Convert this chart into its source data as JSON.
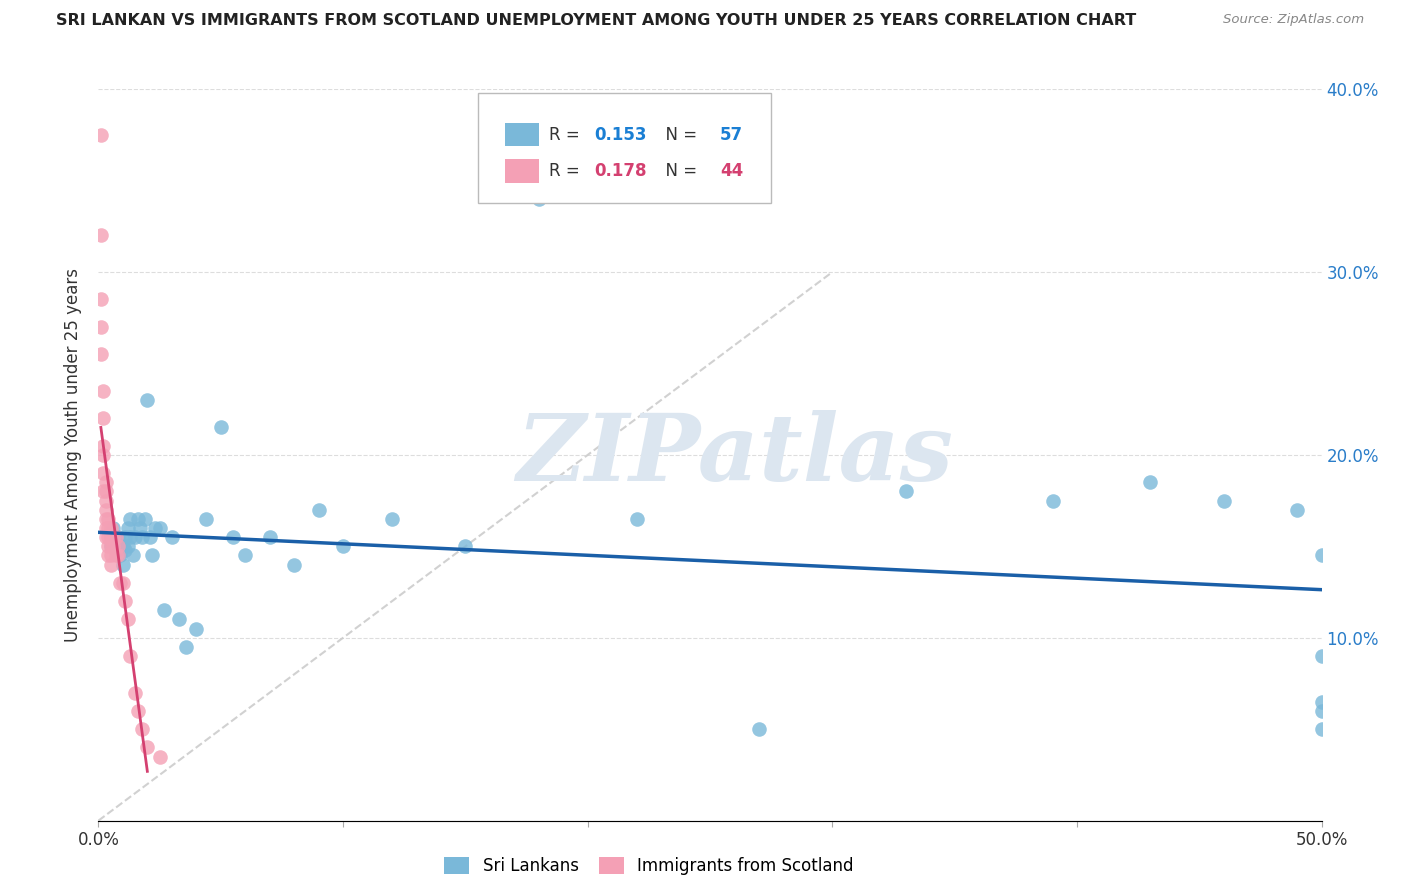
{
  "title": "SRI LANKAN VS IMMIGRANTS FROM SCOTLAND UNEMPLOYMENT AMONG YOUTH UNDER 25 YEARS CORRELATION CHART",
  "source": "Source: ZipAtlas.com",
  "ylabel": "Unemployment Among Youth under 25 years",
  "xlim": [
    0.0,
    0.5
  ],
  "ylim": [
    0.0,
    0.4
  ],
  "sri_lankan_R": 0.153,
  "sri_lankan_N": 57,
  "scotland_R": 0.178,
  "scotland_N": 44,
  "blue_color": "#7ab8d9",
  "pink_color": "#f4a0b5",
  "blue_line_color": "#1a5fa8",
  "pink_line_color": "#d44070",
  "diagonal_color": "#cccccc",
  "watermark": "ZIPatlas",
  "watermark_color": "#dce6f0",
  "sri_lankans_x": [
    0.005,
    0.005,
    0.006,
    0.006,
    0.007,
    0.007,
    0.008,
    0.008,
    0.009,
    0.009,
    0.01,
    0.01,
    0.011,
    0.011,
    0.012,
    0.012,
    0.013,
    0.013,
    0.014,
    0.015,
    0.016,
    0.017,
    0.018,
    0.019,
    0.02,
    0.021,
    0.022,
    0.023,
    0.025,
    0.027,
    0.03,
    0.033,
    0.036,
    0.04,
    0.044,
    0.05,
    0.055,
    0.06,
    0.07,
    0.08,
    0.09,
    0.1,
    0.12,
    0.15,
    0.18,
    0.22,
    0.27,
    0.33,
    0.39,
    0.43,
    0.46,
    0.49,
    0.5,
    0.5,
    0.5,
    0.5,
    0.5
  ],
  "sri_lankans_y": [
    0.155,
    0.15,
    0.15,
    0.16,
    0.148,
    0.155,
    0.145,
    0.155,
    0.145,
    0.15,
    0.14,
    0.15,
    0.155,
    0.148,
    0.15,
    0.16,
    0.155,
    0.165,
    0.145,
    0.155,
    0.165,
    0.16,
    0.155,
    0.165,
    0.23,
    0.155,
    0.145,
    0.16,
    0.16,
    0.115,
    0.155,
    0.11,
    0.095,
    0.105,
    0.165,
    0.215,
    0.155,
    0.145,
    0.155,
    0.14,
    0.17,
    0.15,
    0.165,
    0.15,
    0.34,
    0.165,
    0.05,
    0.18,
    0.175,
    0.185,
    0.175,
    0.17,
    0.09,
    0.145,
    0.05,
    0.065,
    0.06
  ],
  "scotland_x": [
    0.001,
    0.001,
    0.001,
    0.001,
    0.001,
    0.002,
    0.002,
    0.002,
    0.002,
    0.002,
    0.002,
    0.003,
    0.003,
    0.003,
    0.003,
    0.003,
    0.003,
    0.003,
    0.004,
    0.004,
    0.004,
    0.004,
    0.004,
    0.005,
    0.005,
    0.005,
    0.005,
    0.005,
    0.006,
    0.006,
    0.007,
    0.007,
    0.008,
    0.008,
    0.009,
    0.01,
    0.011,
    0.012,
    0.013,
    0.015,
    0.016,
    0.018,
    0.02,
    0.025
  ],
  "scotland_y": [
    0.375,
    0.32,
    0.285,
    0.27,
    0.255,
    0.235,
    0.22,
    0.205,
    0.2,
    0.19,
    0.18,
    0.185,
    0.18,
    0.175,
    0.17,
    0.165,
    0.16,
    0.155,
    0.165,
    0.16,
    0.155,
    0.15,
    0.145,
    0.16,
    0.155,
    0.15,
    0.145,
    0.14,
    0.155,
    0.15,
    0.155,
    0.145,
    0.15,
    0.145,
    0.13,
    0.13,
    0.12,
    0.11,
    0.09,
    0.07,
    0.06,
    0.05,
    0.04,
    0.035
  ]
}
